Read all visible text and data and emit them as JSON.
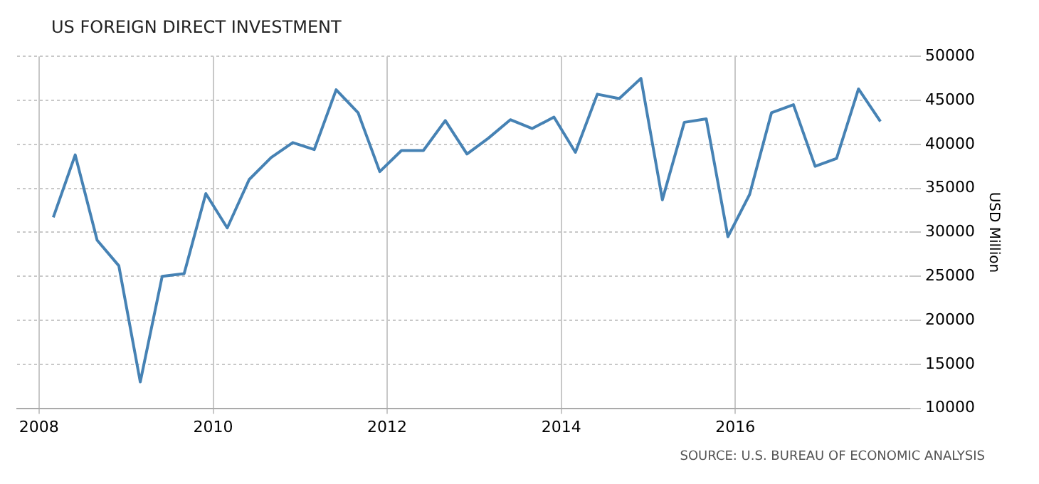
{
  "chart_data": {
    "type": "line",
    "title": "US FOREIGN DIRECT INVESTMENT",
    "ylabel": "USD Million",
    "annotations": [
      "SOURCE: U.S. BUREAU OF ECONOMIC ANALYSIS"
    ],
    "x": [
      "2008-03",
      "2008-06",
      "2008-09",
      "2008-12",
      "2009-03",
      "2009-06",
      "2009-09",
      "2009-12",
      "2010-03",
      "2010-06",
      "2010-09",
      "2010-12",
      "2011-03",
      "2011-06",
      "2011-09",
      "2011-12",
      "2012-03",
      "2012-06",
      "2012-09",
      "2012-12",
      "2013-03",
      "2013-06",
      "2013-09",
      "2013-12",
      "2014-03",
      "2014-06",
      "2014-09",
      "2014-12",
      "2015-03",
      "2015-06",
      "2015-09",
      "2015-12",
      "2016-03",
      "2016-06",
      "2016-09",
      "2016-12",
      "2017-03",
      "2017-06",
      "2017-09"
    ],
    "series": [
      {
        "color": "#4682b4",
        "values": [
          31700,
          38800,
          29100,
          26200,
          13000,
          25000,
          25300,
          34400,
          30500,
          36000,
          38500,
          40200,
          39400,
          46200,
          43600,
          36900,
          39300,
          39300,
          42700,
          38900,
          40700,
          42800,
          41800,
          43100,
          39100,
          45700,
          45200,
          47500,
          33700,
          42500,
          42900,
          29500,
          34300,
          43600,
          44500,
          37500,
          38400,
          46300,
          42600
        ]
      }
    ],
    "xlim": [
      "2007-10",
      "2018-01"
    ],
    "xticks": [
      {
        "value": "2008",
        "label": "2008"
      },
      {
        "value": "2010",
        "label": "2010"
      },
      {
        "value": "2012",
        "label": "2012"
      },
      {
        "value": "2014",
        "label": "2014"
      },
      {
        "value": "2016",
        "label": "2016"
      }
    ],
    "ylim": [
      10000,
      50000
    ],
    "yticks": [
      10000,
      15000,
      20000,
      25000,
      30000,
      35000,
      40000,
      45000,
      50000
    ],
    "grid": true,
    "legend": false,
    "marker": "none",
    "line_style": "solid"
  }
}
